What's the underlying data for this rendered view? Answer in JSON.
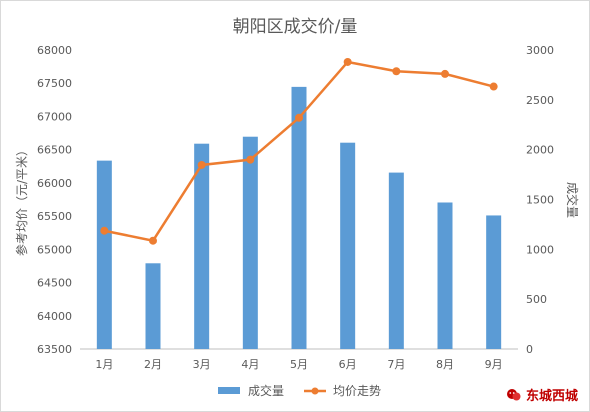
{
  "chart_data": {
    "type": "bar+line",
    "title": "朝阳区成交价/量",
    "categories": [
      "1月",
      "2月",
      "3月",
      "4月",
      "5月",
      "6月",
      "7月",
      "8月",
      "9月"
    ],
    "series": [
      {
        "name": "成交量",
        "type": "bar",
        "axis": "right",
        "color": "#5b9bd5",
        "values": [
          1890,
          860,
          2060,
          2130,
          2630,
          2070,
          1770,
          1470,
          1340
        ]
      },
      {
        "name": "均价走势",
        "type": "line",
        "axis": "left",
        "color": "#ed7d31",
        "values": [
          65280,
          65130,
          66270,
          66350,
          66980,
          67820,
          67680,
          67640,
          67450
        ]
      }
    ],
    "ylabel_left": "参考均价（元/平米）",
    "ylabel_right": "成交量",
    "ylim_left": [
      63500,
      68000
    ],
    "ylim_right": [
      0,
      3000
    ],
    "yticks_left": [
      "63500",
      "64000",
      "64500",
      "65000",
      "65500",
      "66000",
      "66500",
      "67000",
      "67500",
      "68000"
    ],
    "yticks_right": [
      "0",
      "500",
      "1000",
      "1500",
      "2000",
      "2500",
      "3000"
    ],
    "legend_position": "bottom",
    "grid": false
  },
  "watermark": {
    "text": "东城西城"
  }
}
